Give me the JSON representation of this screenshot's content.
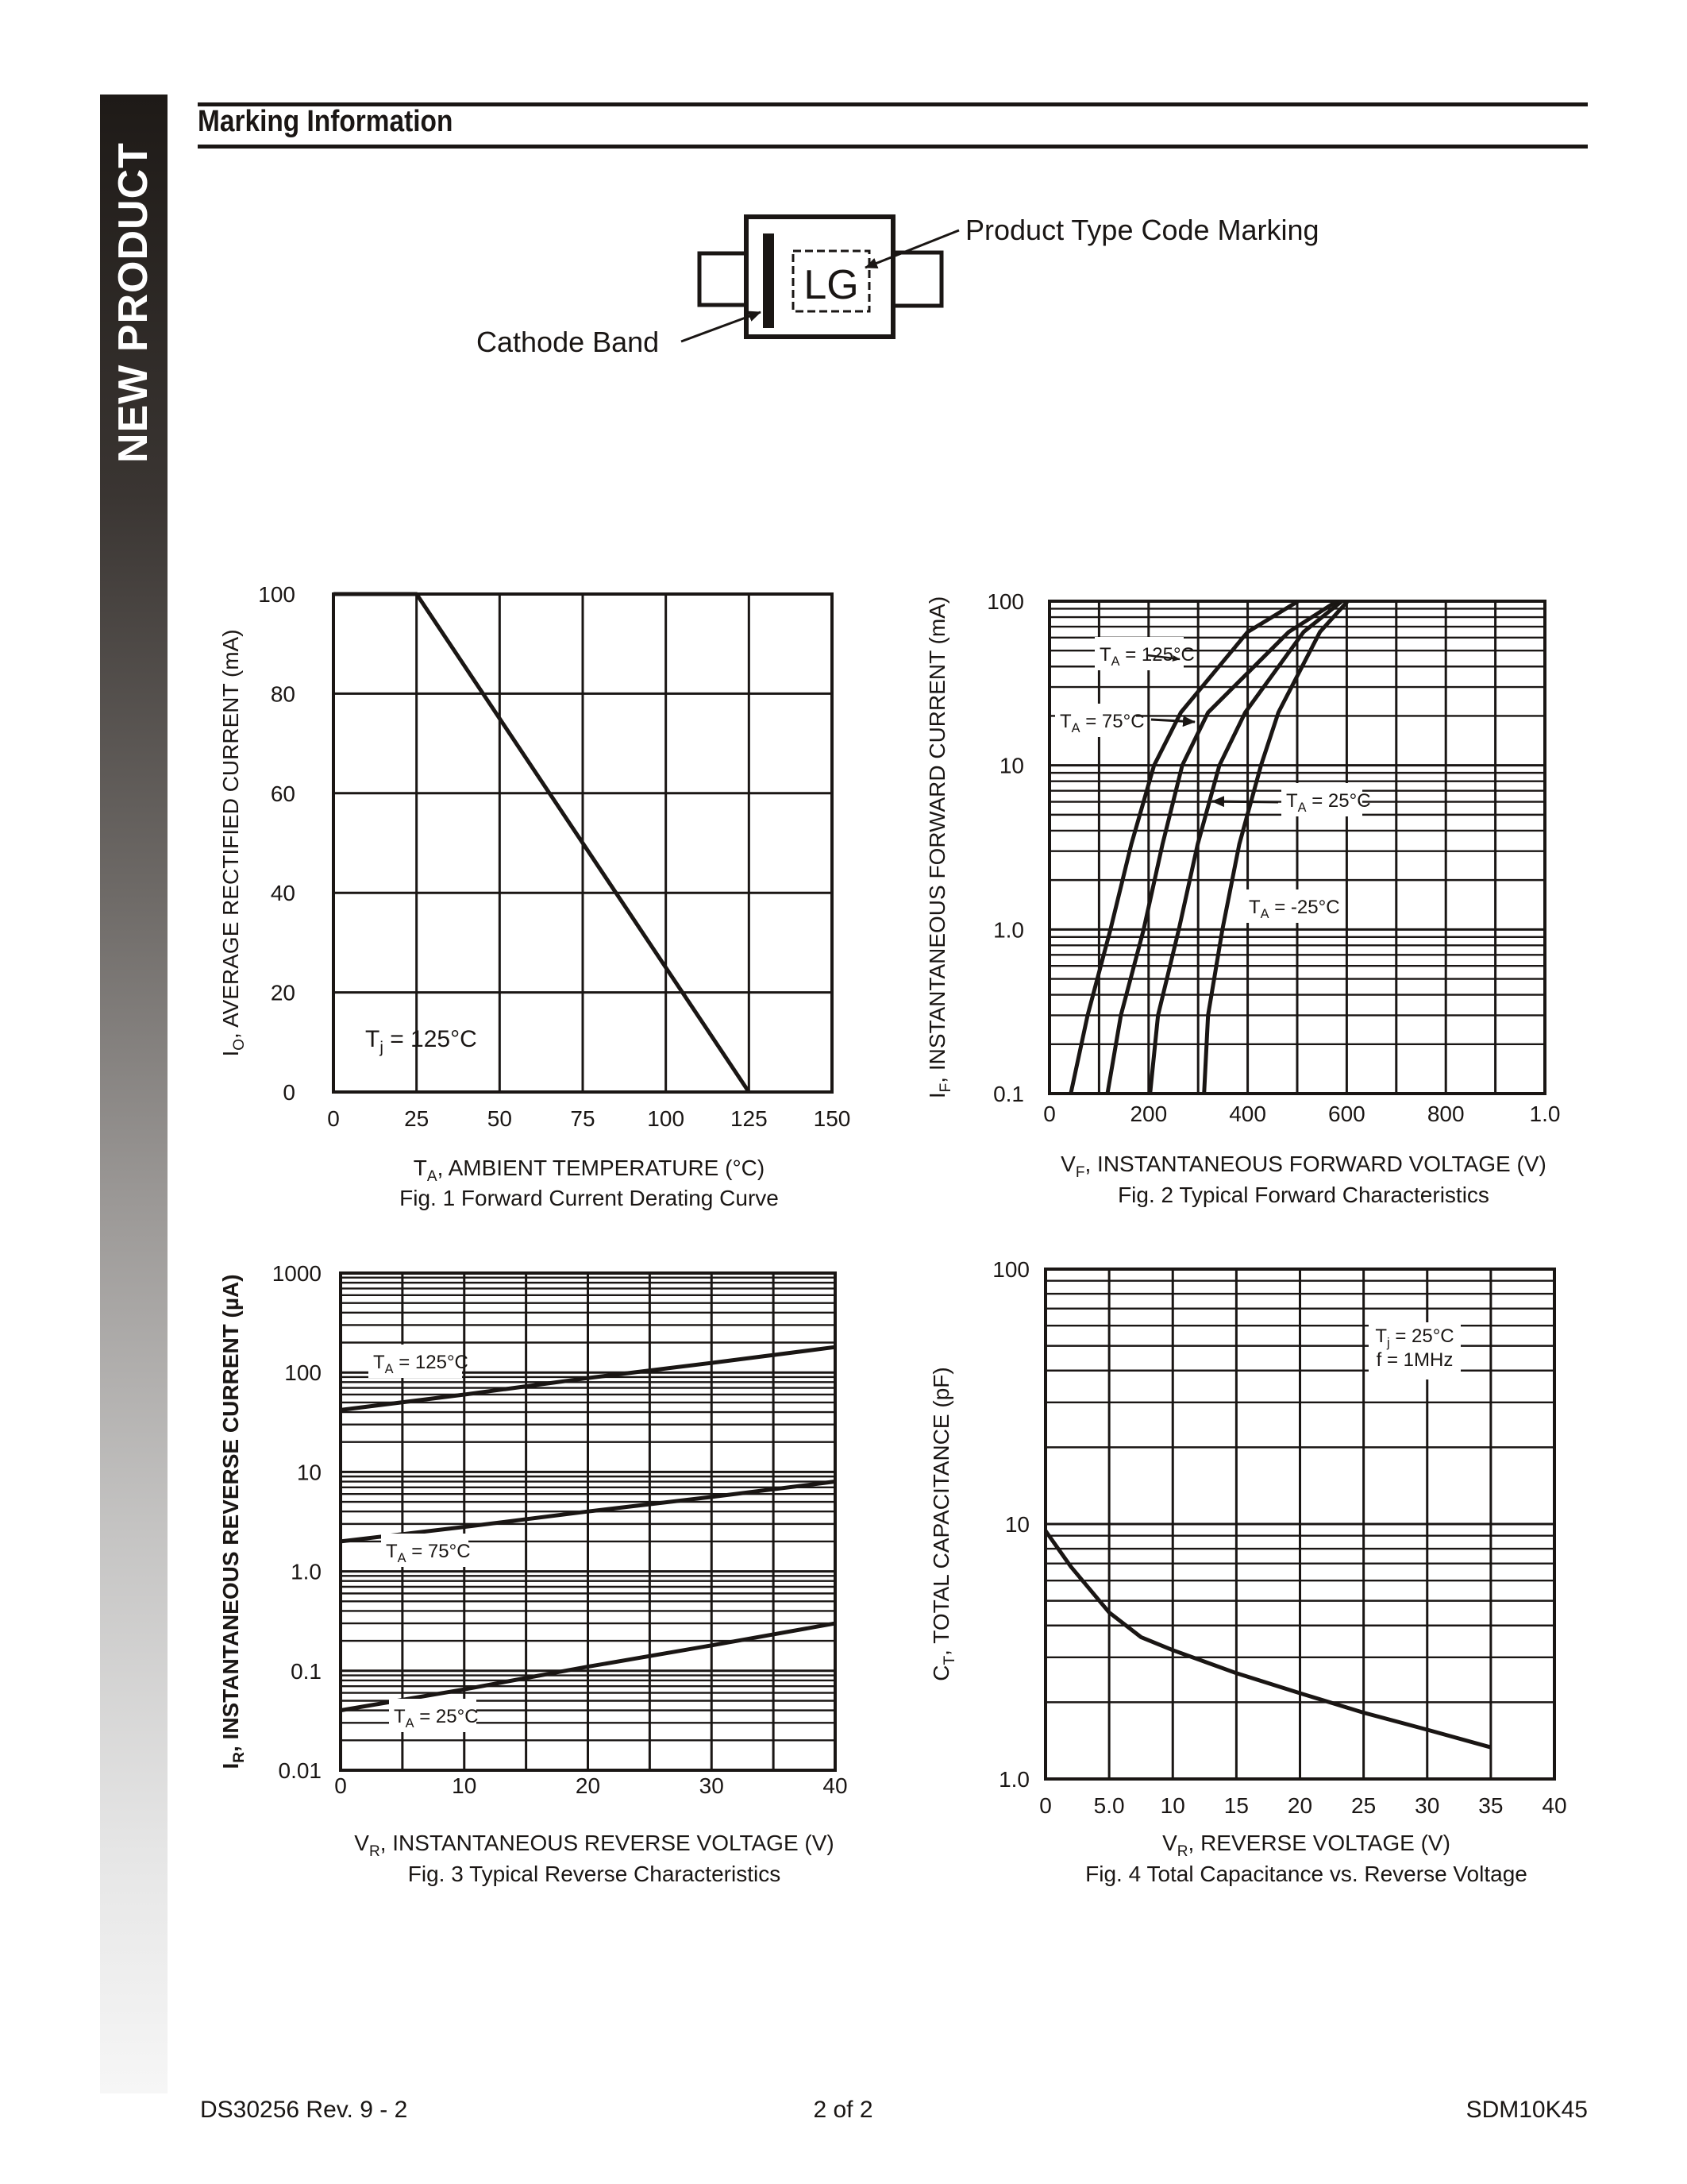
{
  "sidebar": {
    "label": "NEW PRODUCT"
  },
  "header": {
    "title": "Marking Information"
  },
  "marking_diagram": {
    "code": "LG",
    "callout_code": "Product Type Code Marking",
    "callout_band": "Cathode Band"
  },
  "footer": {
    "doc_number": "DS30256 Rev. 9 - 2",
    "page": "2 of 2",
    "part_number": "SDM10K45"
  },
  "chart_data": [
    {
      "id": "fig1",
      "type": "line",
      "title": "Fig. 1  Forward Current Derating Curve",
      "xlabel": "T_A,  AMBIENT TEMPERATURE (°C)",
      "ylabel": "I_O, AVERAGE RECTIFIED CURRENT (mA)",
      "xlim": [
        0,
        150
      ],
      "ylim": [
        0,
        100
      ],
      "x_ticks": [
        "0",
        "25",
        "50",
        "75",
        "100",
        "125",
        "150"
      ],
      "y_ticks": [
        "0",
        "20",
        "40",
        "60",
        "80",
        "100"
      ],
      "yscale": "linear",
      "grid": true,
      "annotations": [
        "T_j = 125°C"
      ],
      "series": [
        {
          "name": "Derating",
          "x": [
            0,
            25,
            125
          ],
          "y": [
            100,
            100,
            0
          ]
        }
      ]
    },
    {
      "id": "fig2",
      "type": "line",
      "title": "Fig. 2  Typical Forward Characteristics",
      "xlabel": "V_F, INSTANTANEOUS FORWARD VOLTAGE (V)",
      "ylabel": "I_F, INSTANTANEOUS FORWARD CURRENT (mA)",
      "xlim": [
        0,
        1000
      ],
      "ylim": [
        0.1,
        100
      ],
      "x_ticks": [
        "0",
        "200",
        "400",
        "600",
        "800",
        "1.0"
      ],
      "y_ticks": [
        "0.1",
        "1.0",
        "10",
        "100"
      ],
      "yscale": "log",
      "grid": true,
      "series": [
        {
          "name": "T_A = 125°C",
          "x": [
            43,
            77,
            123,
            165,
            211,
            265,
            400,
            502
          ],
          "y": [
            0.1,
            0.3,
            1.0,
            3.3,
            10,
            21,
            65,
            100
          ]
        },
        {
          "name": "T_A = 75°C",
          "x": [
            117,
            144,
            190,
            228,
            268,
            320,
            483,
            580
          ],
          "y": [
            0.1,
            0.3,
            1.0,
            3.3,
            10,
            21,
            65,
            100
          ]
        },
        {
          "name": "T_A = 25°C",
          "x": [
            203,
            219,
            261,
            299,
            343,
            395,
            513,
            590
          ],
          "y": [
            0.1,
            0.3,
            1.0,
            3.3,
            10,
            21,
            65,
            100
          ]
        },
        {
          "name": "T_A = -25°C",
          "x": [
            312,
            320,
            349,
            383,
            427,
            462,
            546,
            602
          ],
          "y": [
            0.1,
            0.3,
            1.0,
            3.3,
            10,
            21,
            65,
            100
          ]
        }
      ]
    },
    {
      "id": "fig3",
      "type": "line",
      "title": "Fig. 3  Typical Reverse Characteristics",
      "xlabel": "V_R, INSTANTANEOUS REVERSE VOLTAGE (V)",
      "ylabel": "I_R, INSTANTANEOUS REVERSE CURRENT (µA)",
      "xlim": [
        0,
        40
      ],
      "ylim": [
        0.01,
        1000
      ],
      "x_ticks": [
        "0",
        "10",
        "20",
        "30",
        "40"
      ],
      "y_ticks": [
        "0.01",
        "0.1",
        "1.0",
        "10",
        "100",
        "1000"
      ],
      "yscale": "log",
      "grid": true,
      "series": [
        {
          "name": "T_A = 125°C",
          "x": [
            0,
            10,
            20,
            30,
            40
          ],
          "y": [
            42,
            60,
            88,
            125,
            180
          ]
        },
        {
          "name": "T_A = 75°C",
          "x": [
            0,
            10,
            20,
            30,
            40
          ],
          "y": [
            2.0,
            2.8,
            4.0,
            5.6,
            8.0
          ]
        },
        {
          "name": "T_A = 25°C",
          "x": [
            0,
            10,
            20,
            30,
            40
          ],
          "y": [
            0.04,
            0.065,
            0.11,
            0.18,
            0.3
          ]
        }
      ]
    },
    {
      "id": "fig4",
      "type": "line",
      "title": "Fig. 4  Total Capacitance vs. Reverse Voltage",
      "xlabel": "V_R, REVERSE VOLTAGE (V)",
      "ylabel": "C_T, TOTAL CAPACITANCE (pF)",
      "xlim": [
        0,
        40
      ],
      "ylim": [
        1.0,
        100
      ],
      "x_ticks": [
        "0",
        "5.0",
        "10",
        "15",
        "20",
        "25",
        "30",
        "35",
        "40"
      ],
      "y_ticks": [
        "1.0",
        "10",
        "100"
      ],
      "yscale": "log",
      "grid": true,
      "annotations": [
        "T_j = 25°C",
        "f = 1MHz"
      ],
      "series": [
        {
          "name": "C_T",
          "x": [
            0,
            2,
            5,
            7.5,
            10,
            15,
            20,
            25,
            30,
            35
          ],
          "y": [
            9.4,
            6.8,
            4.5,
            3.6,
            3.2,
            2.6,
            2.17,
            1.82,
            1.56,
            1.33
          ]
        }
      ]
    }
  ]
}
